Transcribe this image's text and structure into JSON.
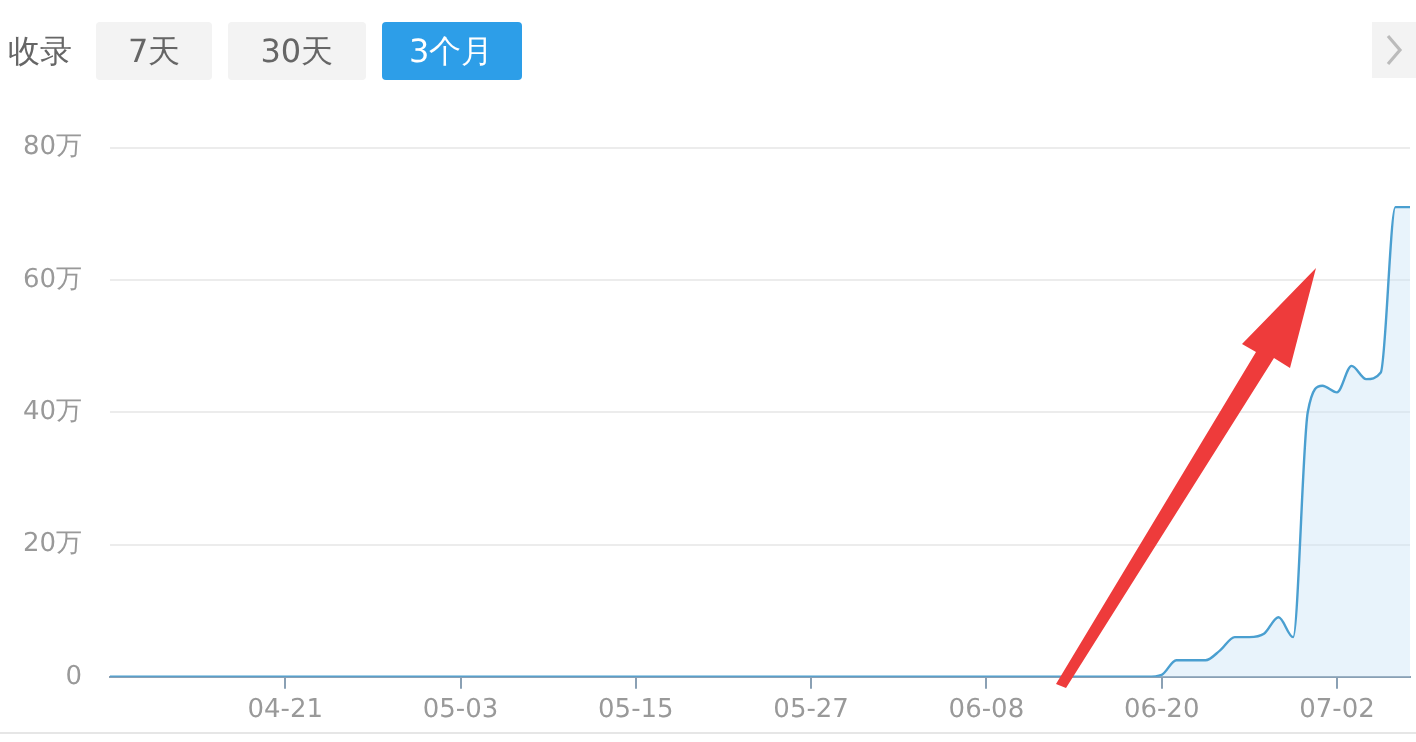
{
  "chart_data": {
    "type": "area",
    "annotations": [
      "收录",
      "7天",
      "30天",
      "3个月"
    ],
    "categories": [
      null,
      null,
      null,
      null,
      null,
      null,
      null,
      null,
      null,
      null,
      null,
      null,
      "04-21",
      null,
      null,
      null,
      null,
      null,
      null,
      null,
      null,
      null,
      null,
      null,
      "05-03",
      null,
      null,
      null,
      null,
      null,
      null,
      null,
      null,
      null,
      null,
      null,
      "05-15",
      null,
      null,
      null,
      null,
      null,
      null,
      null,
      null,
      null,
      null,
      null,
      "05-27",
      null,
      null,
      null,
      null,
      null,
      null,
      null,
      null,
      null,
      null,
      null,
      "06-08",
      null,
      null,
      null,
      null,
      null,
      null,
      null,
      null,
      null,
      null,
      null,
      "06-20",
      null,
      null,
      null,
      null,
      null,
      null,
      null,
      null,
      null,
      null,
      null,
      "07-02",
      null,
      null,
      null,
      null,
      null
    ],
    "series": [
      {
        "color": "#4a9fd0",
        "values": [
          0,
          0,
          0,
          0,
          0,
          0,
          0,
          0,
          0,
          0,
          0,
          0,
          0,
          0,
          0,
          0,
          0,
          0,
          0,
          0,
          0,
          0,
          0,
          0,
          0,
          0,
          0,
          0,
          0,
          0,
          0,
          0,
          0,
          0,
          0,
          0,
          0,
          0,
          0,
          0,
          0,
          0,
          0,
          0,
          0,
          0,
          0,
          0,
          0,
          0,
          0,
          0,
          0,
          0,
          0,
          0,
          0,
          0,
          0,
          0,
          0,
          0,
          0,
          0,
          0,
          0,
          0,
          0,
          0,
          0,
          0,
          0,
          0.3,
          2.5,
          2.5,
          2.5,
          4,
          6,
          6,
          6.5,
          9,
          6,
          40,
          44,
          43,
          47,
          45,
          46,
          71,
          71
        ]
      }
    ],
    "ylim": [
      0,
      80
    ],
    "yticks": [
      0,
      {
        "value": 20,
        "label": "20万"
      },
      {
        "value": 40,
        "label": "40万"
      },
      {
        "value": 60,
        "label": "60万"
      },
      {
        "value": 80,
        "label": "80万"
      }
    ],
    "grid": "y",
    "legend": false,
    "marker": "none"
  }
}
